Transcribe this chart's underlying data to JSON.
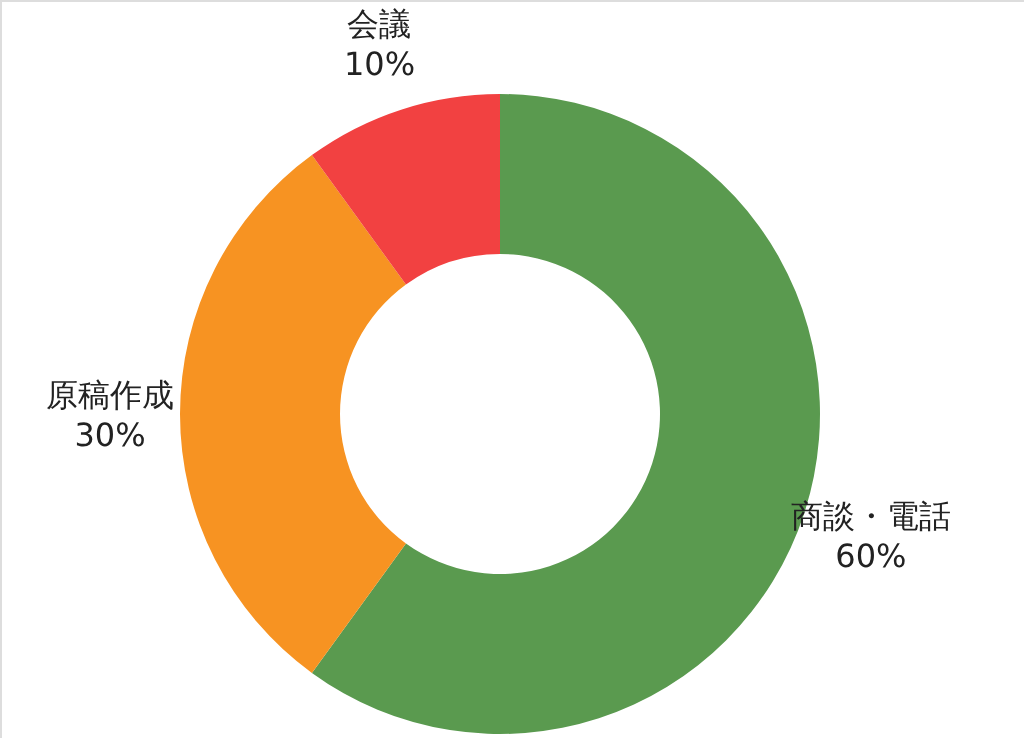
{
  "chart_data": {
    "type": "donut",
    "categories": [
      "商談・電話",
      "原稿作成",
      "会議"
    ],
    "values": [
      60,
      30,
      10
    ],
    "colors": [
      "#5a9a4f",
      "#f79322",
      "#f24141"
    ],
    "value_labels": [
      "60%",
      "30%",
      "10%"
    ]
  }
}
